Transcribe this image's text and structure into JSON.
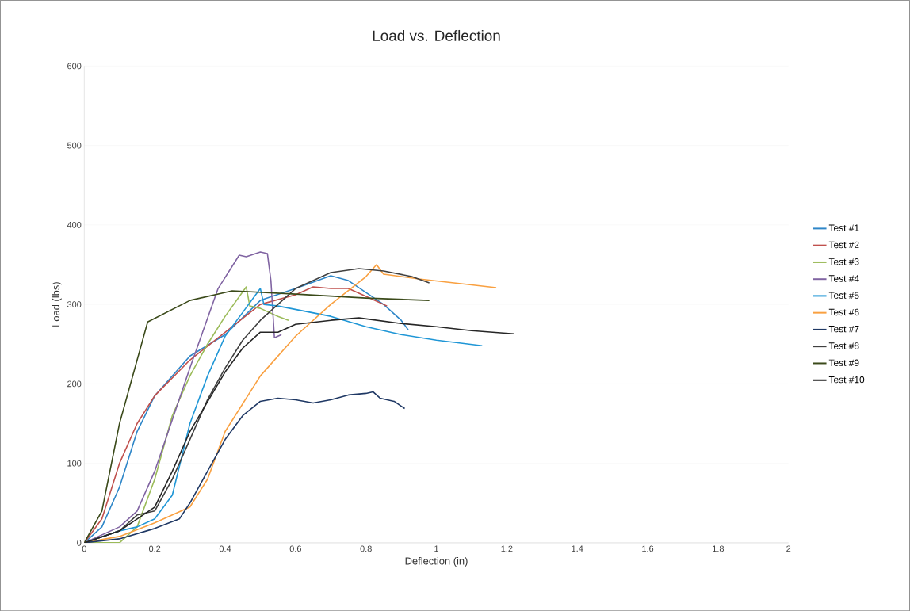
{
  "chart_data": {
    "type": "line",
    "title": "Load vs. Deflection",
    "xlabel": "Deflection (in)",
    "ylabel": "Load (lbs)",
    "xlim": [
      0,
      2
    ],
    "xticks": [
      0,
      0.2,
      0.4,
      0.6,
      0.8,
      1,
      1.2,
      1.4,
      1.6,
      1.8,
      2
    ],
    "ylim": [
      0,
      600
    ],
    "yticks": [
      0,
      100,
      200,
      300,
      400,
      500,
      600
    ],
    "grid": "y",
    "legend": "right",
    "marker": "none",
    "line_style": "solid",
    "series": [
      {
        "name": "Test #1",
        "color": "#2e86c8",
        "x": [
          0,
          0.05,
          0.1,
          0.15,
          0.2,
          0.3,
          0.4,
          0.5,
          0.6,
          0.7,
          0.75,
          0.85,
          0.9,
          0.92
        ],
        "values": [
          0,
          20,
          70,
          140,
          185,
          235,
          262,
          305,
          320,
          336,
          330,
          300,
          280,
          268
        ]
      },
      {
        "name": "Test #2",
        "color": "#c0504d",
        "x": [
          0,
          0.05,
          0.1,
          0.15,
          0.2,
          0.3,
          0.4,
          0.5,
          0.6,
          0.65,
          0.7,
          0.75,
          0.8,
          0.86
        ],
        "values": [
          0,
          30,
          100,
          150,
          185,
          230,
          265,
          300,
          312,
          322,
          320,
          320,
          310,
          298
        ]
      },
      {
        "name": "Test #3",
        "color": "#9bbb59",
        "x": [
          0,
          0.1,
          0.15,
          0.2,
          0.25,
          0.3,
          0.35,
          0.4,
          0.46,
          0.47,
          0.5,
          0.55,
          0.58
        ],
        "values": [
          0,
          0,
          20,
          80,
          160,
          210,
          250,
          285,
          322,
          298,
          295,
          285,
          280
        ]
      },
      {
        "name": "Test #4",
        "color": "#8064a2",
        "x": [
          0,
          0.1,
          0.15,
          0.2,
          0.3,
          0.38,
          0.44,
          0.46,
          0.5,
          0.52,
          0.53,
          0.54,
          0.56
        ],
        "values": [
          0,
          20,
          40,
          90,
          220,
          320,
          362,
          360,
          366,
          364,
          330,
          258,
          262
        ]
      },
      {
        "name": "Test #5",
        "color": "#1f96d6",
        "x": [
          0,
          0.1,
          0.15,
          0.2,
          0.25,
          0.3,
          0.35,
          0.4,
          0.45,
          0.5,
          0.51,
          0.55,
          0.7,
          0.8,
          0.9,
          1.0,
          1.13
        ],
        "values": [
          0,
          15,
          20,
          30,
          60,
          150,
          210,
          260,
          290,
          320,
          300,
          298,
          285,
          272,
          262,
          255,
          248
        ]
      },
      {
        "name": "Test #6",
        "color": "#f9a040",
        "x": [
          0,
          0.1,
          0.2,
          0.3,
          0.35,
          0.4,
          0.5,
          0.6,
          0.7,
          0.8,
          0.83,
          0.85,
          0.95,
          1.05,
          1.17
        ],
        "values": [
          0,
          8,
          25,
          45,
          80,
          140,
          210,
          260,
          300,
          335,
          350,
          338,
          332,
          327,
          321
        ]
      },
      {
        "name": "Test #7",
        "color": "#1f3864",
        "x": [
          0,
          0.1,
          0.2,
          0.27,
          0.3,
          0.35,
          0.4,
          0.45,
          0.5,
          0.55,
          0.6,
          0.65,
          0.7,
          0.75,
          0.8,
          0.82,
          0.84,
          0.88,
          0.91
        ],
        "values": [
          0,
          5,
          18,
          30,
          50,
          90,
          130,
          160,
          178,
          182,
          180,
          176,
          180,
          186,
          188,
          190,
          182,
          178,
          169
        ]
      },
      {
        "name": "Test #8",
        "color": "#404040",
        "x": [
          0,
          0.1,
          0.15,
          0.2,
          0.25,
          0.3,
          0.35,
          0.4,
          0.45,
          0.5,
          0.55,
          0.6,
          0.7,
          0.78,
          0.85,
          0.93,
          0.98
        ],
        "values": [
          0,
          15,
          35,
          40,
          80,
          130,
          180,
          220,
          255,
          280,
          300,
          320,
          340,
          345,
          342,
          335,
          327
        ]
      },
      {
        "name": "Test #9",
        "color": "#3b4a1a",
        "x": [
          0,
          0.05,
          0.1,
          0.18,
          0.3,
          0.42,
          0.6,
          0.8,
          0.98
        ],
        "values": [
          0,
          40,
          150,
          278,
          305,
          317,
          313,
          308,
          305
        ]
      },
      {
        "name": "Test #10",
        "color": "#262626",
        "x": [
          0,
          0.1,
          0.2,
          0.25,
          0.3,
          0.4,
          0.45,
          0.5,
          0.55,
          0.6,
          0.7,
          0.78,
          0.9,
          1.0,
          1.1,
          1.22
        ],
        "values": [
          0,
          15,
          45,
          90,
          140,
          215,
          245,
          265,
          265,
          275,
          280,
          283,
          276,
          272,
          267,
          263
        ]
      }
    ]
  }
}
